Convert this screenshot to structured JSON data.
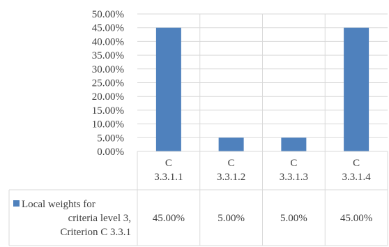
{
  "chart_data": {
    "type": "bar",
    "categories": [
      [
        "C",
        "3.3.1.1"
      ],
      [
        "C",
        "3.3.1.2"
      ],
      [
        "C",
        "3.3.1.3"
      ],
      [
        "C",
        "3.3.1.4"
      ]
    ],
    "series": [
      {
        "name": [
          "Local weights for",
          "criteria level 3,",
          "Criterion C 3.3.1"
        ],
        "values": [
          45,
          5,
          5,
          45
        ],
        "value_labels": [
          "45.00%",
          "5.00%",
          "5.00%",
          "45.00%"
        ],
        "color": "#4f81bd"
      }
    ],
    "yticks": [
      "0.00%",
      "5.00%",
      "10.00%",
      "15.00%",
      "20.00%",
      "25.00%",
      "30.00%",
      "35.00%",
      "40.00%",
      "45.00%",
      "50.00%"
    ],
    "ylim": [
      0,
      50
    ],
    "grid": true,
    "legend": "data-table",
    "colors": {
      "bar": "#4f81bd",
      "grid": "#d9d9d9",
      "text": "#404040"
    }
  }
}
